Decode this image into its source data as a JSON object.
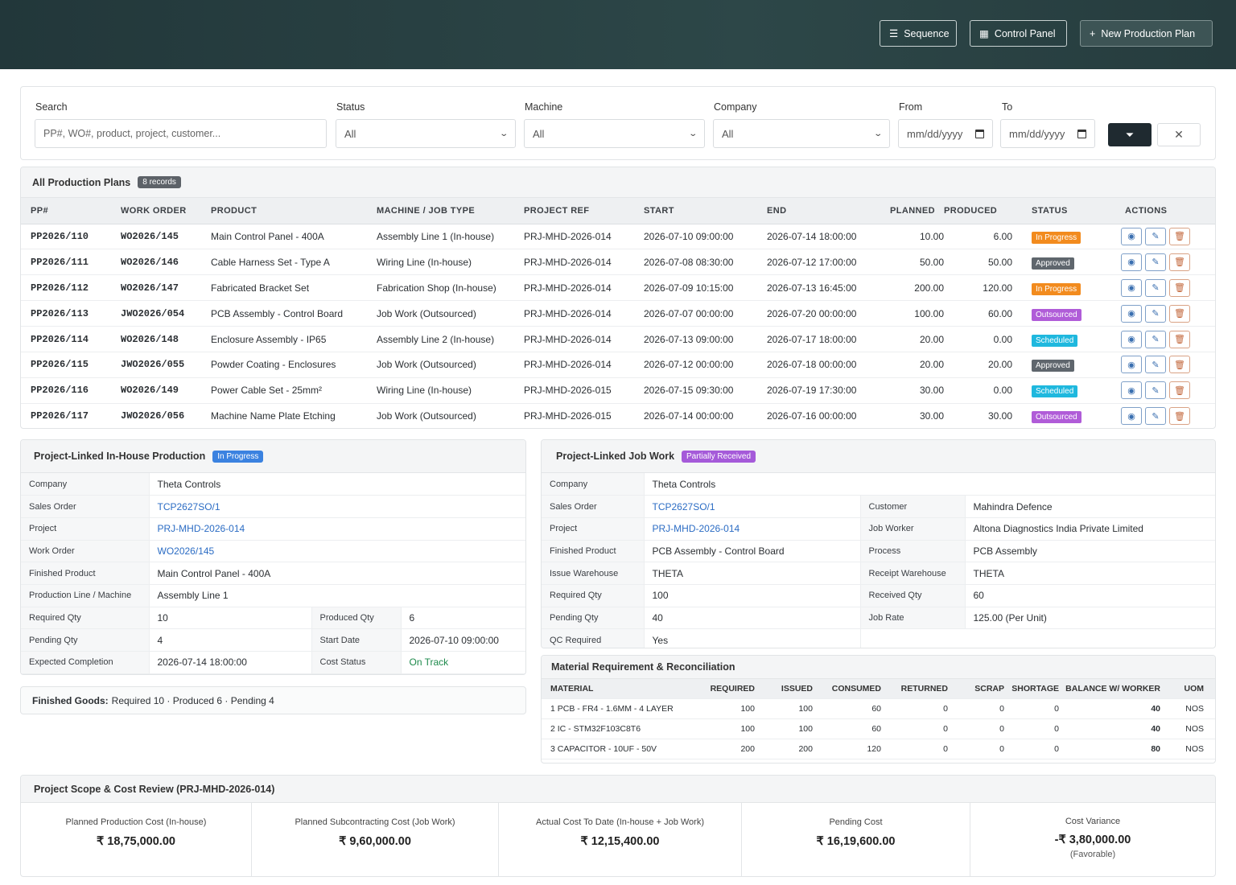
{
  "header": {
    "sequence_label": "Sequence",
    "control_panel_label": "Control Panel",
    "new_plan_label": "New Production Plan"
  },
  "filters": {
    "search_label": "Search",
    "search_placeholder": "PP#, WO#, product, project, customer...",
    "status_label": "Status",
    "status_value": "All",
    "machine_label": "Machine",
    "machine_value": "All",
    "company_label": "Company",
    "company_value": "All",
    "from_label": "From",
    "from_value": "mm/dd/yyyy",
    "to_label": "To",
    "to_value": "mm/dd/yyyy"
  },
  "plans": {
    "title": "All Production Plans",
    "count_badge": "8 records",
    "columns": [
      "PP#",
      "WORK ORDER",
      "PRODUCT",
      "MACHINE / JOB TYPE",
      "PROJECT REF",
      "START",
      "END",
      "PLANNED",
      "PRODUCED",
      "STATUS",
      "ACTIONS"
    ],
    "rows": [
      {
        "pp": "PP2026/110",
        "wo": "WO2026/145",
        "product": "Main Control Panel - 400A",
        "machine": "Assembly Line 1 (In-house)",
        "project": "PRJ-MHD-2026-014",
        "start": "2026-07-10 09:00:00",
        "end": "2026-07-14 18:00:00",
        "planned": "10.00",
        "produced": "6.00",
        "status": "In Progress"
      },
      {
        "pp": "PP2026/111",
        "wo": "WO2026/146",
        "product": "Cable Harness Set - Type A",
        "machine": "Wiring Line (In-house)",
        "project": "PRJ-MHD-2026-014",
        "start": "2026-07-08 08:30:00",
        "end": "2026-07-12 17:00:00",
        "planned": "50.00",
        "produced": "50.00",
        "status": "Approved"
      },
      {
        "pp": "PP2026/112",
        "wo": "WO2026/147",
        "product": "Fabricated Bracket Set",
        "machine": "Fabrication Shop (In-house)",
        "project": "PRJ-MHD-2026-014",
        "start": "2026-07-09 10:15:00",
        "end": "2026-07-13 16:45:00",
        "planned": "200.00",
        "produced": "120.00",
        "status": "In Progress"
      },
      {
        "pp": "PP2026/113",
        "wo": "JWO2026/054",
        "product": "PCB Assembly - Control Board",
        "machine": "Job Work (Outsourced)",
        "project": "PRJ-MHD-2026-014",
        "start": "2026-07-07 00:00:00",
        "end": "2026-07-20 00:00:00",
        "planned": "100.00",
        "produced": "60.00",
        "status": "Outsourced"
      },
      {
        "pp": "PP2026/114",
        "wo": "WO2026/148",
        "product": "Enclosure Assembly - IP65",
        "machine": "Assembly Line 2 (In-house)",
        "project": "PRJ-MHD-2026-014",
        "start": "2026-07-13 09:00:00",
        "end": "2026-07-17 18:00:00",
        "planned": "20.00",
        "produced": "0.00",
        "status": "Scheduled"
      },
      {
        "pp": "PP2026/115",
        "wo": "JWO2026/055",
        "product": "Powder Coating - Enclosures",
        "machine": "Job Work (Outsourced)",
        "project": "PRJ-MHD-2026-014",
        "start": "2026-07-12 00:00:00",
        "end": "2026-07-18 00:00:00",
        "planned": "20.00",
        "produced": "20.00",
        "status": "Approved"
      },
      {
        "pp": "PP2026/116",
        "wo": "WO2026/149",
        "product": "Power Cable Set - 25mm²",
        "machine": "Wiring Line (In-house)",
        "project": "PRJ-MHD-2026-015",
        "start": "2026-07-15 09:30:00",
        "end": "2026-07-19 17:30:00",
        "planned": "30.00",
        "produced": "0.00",
        "status": "Scheduled"
      },
      {
        "pp": "PP2026/117",
        "wo": "JWO2026/056",
        "product": "Machine Name Plate Etching",
        "machine": "Job Work (Outsourced)",
        "project": "PRJ-MHD-2026-015",
        "start": "2026-07-14 00:00:00",
        "end": "2026-07-16 00:00:00",
        "planned": "30.00",
        "produced": "30.00",
        "status": "Outsourced"
      }
    ]
  },
  "status_colors": {
    "In Progress": "#f28b1e",
    "Approved": "#5f666d",
    "Outsourced": "#b05cd8",
    "Scheduled": "#1fb8de"
  },
  "inhouse": {
    "title": "Project-Linked In-House Production",
    "badge": "In Progress",
    "company_label": "Company",
    "company": "Theta Controls",
    "so_label": "Sales Order",
    "so": "TCP2627SO/1",
    "project_label": "Project",
    "project": "PRJ-MHD-2026-014",
    "wo_label": "Work Order",
    "wo": "WO2026/145",
    "fp_label": "Finished Product",
    "fp": "Main Control Panel - 400A",
    "line_label": "Production Line / Machine",
    "line": "Assembly Line 1",
    "req_label": "Required Qty",
    "req": "10",
    "prod_label": "Produced Qty",
    "prod": "6",
    "pend_label": "Pending Qty",
    "pend": "4",
    "start_label": "Start Date",
    "start": "2026-07-10 09:00:00",
    "exp_label": "Expected Completion",
    "exp": "2026-07-14 18:00:00",
    "cost_label": "Cost Status",
    "cost": "On Track"
  },
  "finished_goods": {
    "label": "Finished Goods:",
    "text": "Required 10 · Produced 6 · Pending 4"
  },
  "jobwork": {
    "title": "Project-Linked Job Work",
    "badge": "Partially Received",
    "company_label": "Company",
    "company": "Theta Controls",
    "so_label": "Sales Order",
    "so": "TCP2627SO/1",
    "customer_label": "Customer",
    "customer": "Mahindra Defence",
    "project_label": "Project",
    "project": "PRJ-MHD-2026-014",
    "worker_label": "Job Worker",
    "worker": "Altona Diagnostics India Private Limited",
    "fp_label": "Finished Product",
    "fp": "PCB Assembly - Control Board",
    "process_label": "Process",
    "process": "PCB Assembly",
    "iw_label": "Issue Warehouse",
    "iw": "THETA",
    "rw_label": "Receipt Warehouse",
    "rw": "THETA",
    "req_label": "Required Qty",
    "req": "100",
    "recv_label": "Received Qty",
    "recv": "60",
    "pend_label": "Pending Qty",
    "pend": "40",
    "rate_label": "Job Rate",
    "rate": "125.00 (Per Unit)",
    "qc_label": "QC Required",
    "qc": "Yes"
  },
  "materials": {
    "title": "Material Requirement & Reconciliation",
    "columns": [
      "MATERIAL",
      "REQUIRED",
      "ISSUED",
      "CONSUMED",
      "RETURNED",
      "SCRAP",
      "SHORTAGE",
      "BALANCE W/ WORKER",
      "UOM"
    ],
    "rows": [
      {
        "material": "1 PCB - FR4 - 1.6MM - 4 LAYER",
        "required": "100",
        "issued": "100",
        "consumed": "60",
        "returned": "0",
        "scrap": "0",
        "shortage": "0",
        "balance": "40",
        "uom": "NOS"
      },
      {
        "material": "2 IC - STM32F103C8T6",
        "required": "100",
        "issued": "100",
        "consumed": "60",
        "returned": "0",
        "scrap": "0",
        "shortage": "0",
        "balance": "40",
        "uom": "NOS"
      },
      {
        "material": "3 CAPACITOR - 10UF - 50V",
        "required": "200",
        "issued": "200",
        "consumed": "120",
        "returned": "0",
        "scrap": "0",
        "shortage": "0",
        "balance": "80",
        "uom": "NOS"
      }
    ]
  },
  "cost_review": {
    "title": "Project Scope & Cost Review (PRJ-MHD-2026-014)",
    "cells": [
      {
        "label": "Planned Production Cost (In-house)",
        "value": "₹ 18,75,000.00"
      },
      {
        "label": "Planned Subcontracting Cost (Job Work)",
        "value": "₹ 9,60,000.00"
      },
      {
        "label": "Actual Cost To Date (In-house + Job Work)",
        "value": "₹ 12,15,400.00"
      },
      {
        "label": "Pending Cost",
        "value": "₹ 16,19,600.00"
      },
      {
        "label": "Cost Variance",
        "value": "-₹ 3,80,000.00",
        "note": "(Favorable)"
      }
    ]
  }
}
